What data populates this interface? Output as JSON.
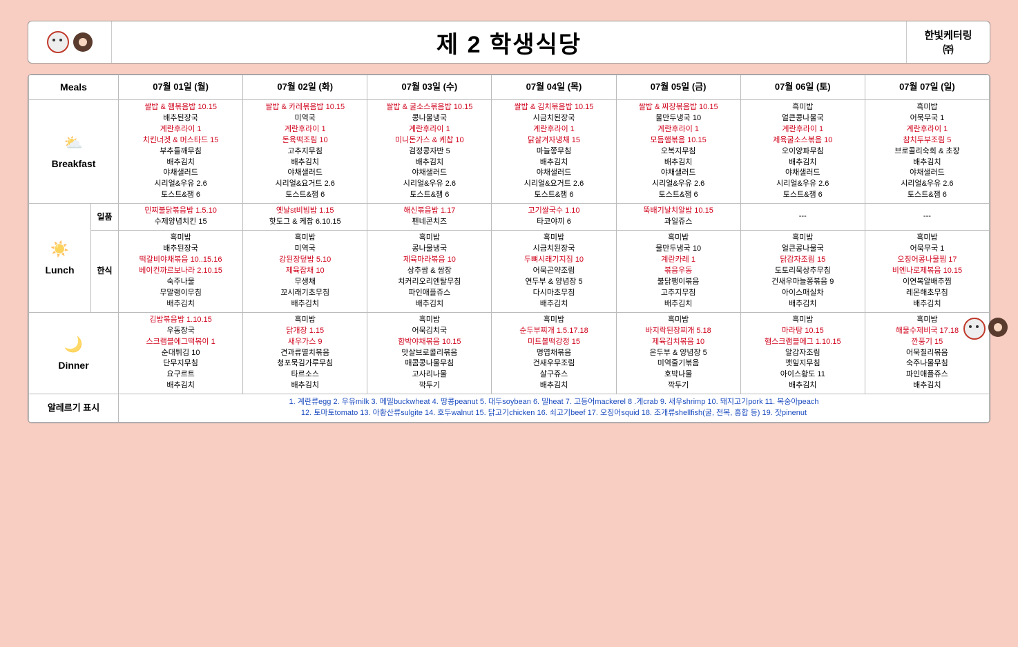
{
  "header": {
    "title": "제 2 학생식당",
    "company_line1": "한빛케터링",
    "company_line2": "㈜"
  },
  "columns": {
    "meals_label": "Meals",
    "days": [
      "07월 01일 (월)",
      "07월 02일 (화)",
      "07월 03일 (수)",
      "07월 04일 (목)",
      "07월 05일 (금)",
      "07월 06일 (토)",
      "07월 07일 (일)"
    ]
  },
  "meals": {
    "breakfast": {
      "label": "Breakfast",
      "days": [
        [
          {
            "t": "쌀밥 & 햄볶음밥 10.15",
            "r": 1
          },
          {
            "t": "배추된장국"
          },
          {
            "t": "계란후라이 1",
            "r": 1
          },
          {
            "t": "치킨너겟 & 머스타드 15",
            "r": 1
          },
          {
            "t": "부추들깨무침"
          },
          {
            "t": "배추김치"
          },
          {
            "t": "야채샐러드"
          },
          {
            "t": "시리얼&우유 2.6"
          },
          {
            "t": "토스트&잼 6"
          }
        ],
        [
          {
            "t": "쌀밥 & 카레볶음밥 10.15",
            "r": 1
          },
          {
            "t": "미역국"
          },
          {
            "t": "계란후라이 1",
            "r": 1
          },
          {
            "t": "돈육떡조림 10",
            "r": 1
          },
          {
            "t": "고추지무침"
          },
          {
            "t": "배추김치"
          },
          {
            "t": "야채샐러드"
          },
          {
            "t": "시리얼&요거트 2.6"
          },
          {
            "t": "토스트&잼 6"
          }
        ],
        [
          {
            "t": "쌀밥 & 굴소스볶음밥 10.15",
            "r": 1
          },
          {
            "t": "콩나물냉국"
          },
          {
            "t": "계란후라이 1",
            "r": 1
          },
          {
            "t": "미니돈가스 & 케찹 10",
            "r": 1
          },
          {
            "t": "검정콩자반 5"
          },
          {
            "t": "배추김치"
          },
          {
            "t": "야채샐러드"
          },
          {
            "t": "시리얼&우유 2.6"
          },
          {
            "t": "토스트&잼 6"
          }
        ],
        [
          {
            "t": "쌀밥 & 김치볶음밥 10.15",
            "r": 1
          },
          {
            "t": "시금치된장국"
          },
          {
            "t": "계란후라이 1",
            "r": 1
          },
          {
            "t": "닭살겨자냉채 15",
            "r": 1
          },
          {
            "t": "마늘쫑무침"
          },
          {
            "t": "배추김치"
          },
          {
            "t": "야채샐러드"
          },
          {
            "t": "시리얼&요거트 2.6"
          },
          {
            "t": "토스트&잼 6"
          }
        ],
        [
          {
            "t": "쌀밥 & 짜장볶음밥 10.15",
            "r": 1
          },
          {
            "t": "물만두냉국 10"
          },
          {
            "t": "계란후라이 1",
            "r": 1
          },
          {
            "t": "모듬햄볶음 10.15",
            "r": 1
          },
          {
            "t": "오복지무침"
          },
          {
            "t": "배추김치"
          },
          {
            "t": "야채샐러드"
          },
          {
            "t": "시리얼&우유 2.6"
          },
          {
            "t": "토스트&잼 6"
          }
        ],
        [
          {
            "t": "흑미밥"
          },
          {
            "t": "얼큰콩나물국"
          },
          {
            "t": "계란후라이 1",
            "r": 1
          },
          {
            "t": "제육굴소스볶음 10",
            "r": 1
          },
          {
            "t": "오이양파무침"
          },
          {
            "t": "배추김치"
          },
          {
            "t": "야채샐러드"
          },
          {
            "t": "시리얼&우유 2.6"
          },
          {
            "t": "토스트&잼 6"
          }
        ],
        [
          {
            "t": "흑미밥"
          },
          {
            "t": "어묵무국 1"
          },
          {
            "t": "계란후라이 1",
            "r": 1
          },
          {
            "t": "참치두부조림 5",
            "r": 1
          },
          {
            "t": "브로콜리숙회 & 초장"
          },
          {
            "t": "배추김치"
          },
          {
            "t": "야채샐러드"
          },
          {
            "t": "시리얼&우유 2.6"
          },
          {
            "t": "토스트&잼 6"
          }
        ]
      ]
    },
    "lunch": {
      "label": "Lunch",
      "ilpum_label": "일품",
      "hansik_label": "한식",
      "ilpum": [
        [
          {
            "t": "민찌불닭볶음밥 1.5.10",
            "r": 1
          },
          {
            "t": "수제양념치킨 15"
          }
        ],
        [
          {
            "t": "옛날st비빔밥 1.15",
            "r": 1
          },
          {
            "t": "핫도그 & 케찹 6.10.15"
          }
        ],
        [
          {
            "t": "해신볶음밥 1.17",
            "r": 1
          },
          {
            "t": "펜네콘치즈"
          }
        ],
        [
          {
            "t": "고기쌀국수 1.10",
            "r": 1
          },
          {
            "t": "타코야끼 6"
          }
        ],
        [
          {
            "t": "뚝배기날치알밥 10.15",
            "r": 1
          },
          {
            "t": "과일쥬스"
          }
        ],
        [
          {
            "t": "---"
          }
        ],
        [
          {
            "t": "---"
          }
        ]
      ],
      "hansik": [
        [
          {
            "t": "흑미밥"
          },
          {
            "t": "배추된장국"
          },
          {
            "t": "떡갈비야채볶음 10..15.16",
            "r": 1
          },
          {
            "t": "베이컨까르보나라 2.10.15",
            "r": 1
          },
          {
            "t": "숙주나물"
          },
          {
            "t": "무말랭이무침"
          },
          {
            "t": "배추김치"
          }
        ],
        [
          {
            "t": "흑미밥"
          },
          {
            "t": "미역국"
          },
          {
            "t": "강된장덮밥 5.10",
            "r": 1
          },
          {
            "t": "제육잡채 10",
            "r": 1
          },
          {
            "t": "무생채"
          },
          {
            "t": "꼬시래기초무침"
          },
          {
            "t": "배추김치"
          }
        ],
        [
          {
            "t": "흑미밥"
          },
          {
            "t": "콩나물냉국"
          },
          {
            "t": "제육마라볶음 10",
            "r": 1
          },
          {
            "t": "상추쌈 & 쌈장"
          },
          {
            "t": "치커리오리엔탈무침"
          },
          {
            "t": "파인애플쥬스"
          },
          {
            "t": "배추김치"
          }
        ],
        [
          {
            "t": "흑미밥"
          },
          {
            "t": "시금치된장국"
          },
          {
            "t": "두뼈시래기지짐 10",
            "r": 1
          },
          {
            "t": "어묵곤약조림"
          },
          {
            "t": "연두부 & 양념장 5"
          },
          {
            "t": "다시마초무침"
          },
          {
            "t": "배추김치"
          }
        ],
        [
          {
            "t": "흑미밥"
          },
          {
            "t": "물만두냉국 10"
          },
          {
            "t": "계란카레 1",
            "r": 1
          },
          {
            "t": "볶음우동",
            "r": 1
          },
          {
            "t": "불닭팽이볶음"
          },
          {
            "t": "고추지무침"
          },
          {
            "t": "배추김치"
          }
        ],
        [
          {
            "t": "흑미밥"
          },
          {
            "t": "얼큰콩나물국"
          },
          {
            "t": "닭감자조림 15",
            "r": 1
          },
          {
            "t": "도토리묵상추무침"
          },
          {
            "t": "건새우마늘쫑볶음 9"
          },
          {
            "t": "아이스매실차"
          },
          {
            "t": "배추김치"
          }
        ],
        [
          {
            "t": "흑미밥"
          },
          {
            "t": "어묵무국 1"
          },
          {
            "t": "오징어콩나물찜 17",
            "r": 1
          },
          {
            "t": "비엔나로제볶음 10.15",
            "r": 1
          },
          {
            "t": "이연복알배추찜"
          },
          {
            "t": "레몬해초무침"
          },
          {
            "t": "배추김치"
          }
        ]
      ]
    },
    "dinner": {
      "label": "Dinner",
      "days": [
        [
          {
            "t": "김밥볶음밥 1.10.15",
            "r": 1
          },
          {
            "t": "우동장국"
          },
          {
            "t": "스크램블에그떡볶이 1",
            "r": 1
          },
          {
            "t": "순대튀김 10"
          },
          {
            "t": "단무지무침"
          },
          {
            "t": "요구르트"
          },
          {
            "t": "배추김치"
          }
        ],
        [
          {
            "t": "흑미밥"
          },
          {
            "t": "닭개장 1.15",
            "r": 1
          },
          {
            "t": "새우가스 9",
            "r": 1
          },
          {
            "t": "견과류멸치볶음"
          },
          {
            "t": "청포묵김가루무침"
          },
          {
            "t": "타르소스"
          },
          {
            "t": "배추김치"
          }
        ],
        [
          {
            "t": "흑미밥"
          },
          {
            "t": "어묵김치국"
          },
          {
            "t": "함박야채볶음 10.15",
            "r": 1
          },
          {
            "t": "맛살브로콜리볶음"
          },
          {
            "t": "매콤콩나물무침"
          },
          {
            "t": "고사리나물"
          },
          {
            "t": "깍두기"
          }
        ],
        [
          {
            "t": "흑미밥"
          },
          {
            "t": "순두부찌개 1.5.17.18",
            "r": 1
          },
          {
            "t": "미트볼떡강정 15",
            "r": 1
          },
          {
            "t": "명엽채볶음"
          },
          {
            "t": "건새우무조림"
          },
          {
            "t": "살구쥬스"
          },
          {
            "t": "배추김치"
          }
        ],
        [
          {
            "t": "흑미밥"
          },
          {
            "t": "바지락된장찌개 5.18",
            "r": 1
          },
          {
            "t": "제육김치볶음 10",
            "r": 1
          },
          {
            "t": "온두부 & 양념장 5"
          },
          {
            "t": "미역줄기볶음"
          },
          {
            "t": "호박나물"
          },
          {
            "t": "깍두기"
          }
        ],
        [
          {
            "t": "흑미밥"
          },
          {
            "t": "마라탕 10.15",
            "r": 1
          },
          {
            "t": "햄스크램블에그 1.10.15",
            "r": 1
          },
          {
            "t": "알감자조림"
          },
          {
            "t": "깻잎지무침"
          },
          {
            "t": "아이스황도 11"
          },
          {
            "t": "배추김치"
          }
        ],
        [
          {
            "t": "흑미밥"
          },
          {
            "t": "해물수제비국 17.18",
            "r": 1
          },
          {
            "t": "깐풍기 15",
            "r": 1
          },
          {
            "t": "어묵칠리볶음"
          },
          {
            "t": "숙주나물무침"
          },
          {
            "t": "파인애플쥬스"
          },
          {
            "t": "배추김치"
          }
        ]
      ]
    }
  },
  "allergy": {
    "label": "알레르기 표시",
    "line1": "1. 계란류egg 2. 우유milk 3. 메밀buckwheat 4. 땅콩peanut 5. 대두soybean 6. 밀heat 7. 고등어mackerel 8 .게crab 9. 새우shrimp 10. 돼지고기pork 11. 복숭아peach",
    "line2": "12. 토마토tomato 13. 아황산류sulgite 14. 호두walnut 15. 닭고기chicken 16. 쇠고기beef 17. 오징어squid 18. 조개류shellfish(굴, 전복, 홍합 등) 19. 잣pinenut"
  }
}
